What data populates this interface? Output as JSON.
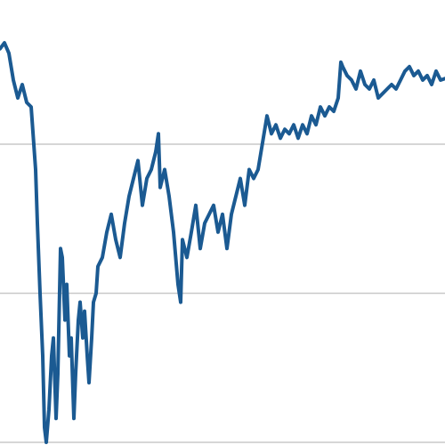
{
  "chart_data": {
    "type": "line",
    "x": [
      0,
      5,
      10,
      15,
      20,
      25,
      30,
      35,
      40,
      42,
      45,
      48,
      50,
      52,
      55,
      58,
      60,
      63,
      65,
      68,
      70,
      73,
      75,
      78,
      80,
      83,
      85,
      88,
      90,
      93,
      95,
      98,
      100,
      103,
      105,
      108,
      110,
      115,
      120,
      125,
      130,
      135,
      140,
      145,
      150,
      155,
      160,
      165,
      170,
      175,
      178,
      180,
      185,
      190,
      195,
      200,
      203,
      205,
      210,
      215,
      220,
      225,
      230,
      235,
      240,
      245,
      250,
      255,
      260,
      265,
      270,
      275,
      280,
      285,
      290,
      295,
      300,
      305,
      310,
      315,
      320,
      325,
      330,
      335,
      340,
      345,
      350,
      355,
      360,
      365,
      370,
      375,
      380,
      383,
      385,
      390,
      395,
      400,
      405,
      410,
      415,
      420,
      425,
      430,
      435,
      440,
      445,
      450,
      455,
      460,
      465,
      470,
      475,
      480,
      485,
      490,
      495,
      500
    ],
    "series": [
      {
        "color": "#1b5a92",
        "values": [
          2.64,
          2.68,
          2.61,
          2.43,
          2.31,
          2.4,
          2.28,
          2.25,
          1.83,
          1.47,
          1.0,
          0.58,
          0.1,
          0.0,
          0.22,
          0.58,
          0.7,
          0.16,
          0.46,
          1.3,
          1.24,
          0.82,
          1.06,
          0.58,
          0.7,
          0.16,
          0.46,
          0.82,
          0.94,
          0.7,
          0.88,
          0.58,
          0.4,
          0.7,
          0.94,
          1.0,
          1.18,
          1.24,
          1.41,
          1.53,
          1.36,
          1.24,
          1.47,
          1.65,
          1.77,
          1.89,
          1.59,
          1.77,
          1.83,
          1.95,
          2.07,
          1.71,
          1.83,
          1.65,
          1.41,
          1.06,
          0.94,
          1.36,
          1.24,
          1.41,
          1.59,
          1.3,
          1.47,
          1.53,
          1.59,
          1.41,
          1.53,
          1.3,
          1.53,
          1.65,
          1.77,
          1.59,
          1.83,
          1.77,
          1.83,
          2.01,
          2.19,
          2.07,
          2.13,
          2.04,
          2.1,
          2.07,
          2.13,
          2.04,
          2.13,
          2.07,
          2.19,
          2.13,
          2.25,
          2.19,
          2.25,
          2.22,
          2.31,
          2.55,
          2.52,
          2.46,
          2.43,
          2.37,
          2.49,
          2.4,
          2.37,
          2.43,
          2.31,
          2.34,
          2.37,
          2.4,
          2.37,
          2.43,
          2.49,
          2.52,
          2.46,
          2.49,
          2.43,
          2.46,
          2.4,
          2.49,
          2.43,
          2.44
        ]
      }
    ],
    "xlim": [
      0,
      500
    ],
    "ylim": [
      0,
      3
    ],
    "yticks": [
      0,
      1,
      2
    ],
    "grid": true
  }
}
